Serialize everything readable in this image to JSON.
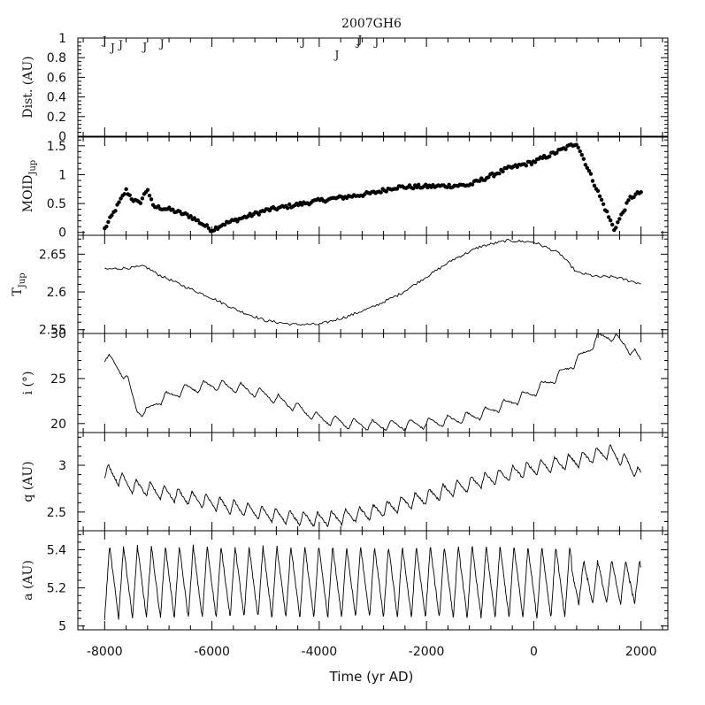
{
  "chart_data": {
    "title": "2007GH6",
    "xlabel": "Time (yr AD)",
    "xlim": [
      -8500,
      2500
    ],
    "xticks": [
      -8000,
      -6000,
      -4000,
      -2000,
      0,
      2000
    ],
    "xtick_labels": [
      "-8000",
      "-6000",
      "-4000",
      "-2000",
      "0",
      "2000"
    ],
    "panels": [
      {
        "id": "dist",
        "type": "scatter",
        "marker": "J",
        "ylabel": "Dist. (AU)",
        "ylim": [
          0,
          1
        ],
        "yticks": [
          0,
          0.2,
          0.4,
          0.6,
          0.8,
          1
        ],
        "ytick_labels": [
          "0",
          "0.2",
          "0.4",
          "0.6",
          "0.8",
          "1"
        ],
        "points": [
          {
            "x": -8000,
            "y": 0.98
          },
          {
            "x": -7850,
            "y": 0.91
          },
          {
            "x": -7700,
            "y": 0.94
          },
          {
            "x": -7250,
            "y": 0.92
          },
          {
            "x": -6930,
            "y": 0.95
          },
          {
            "x": -4300,
            "y": 0.97
          },
          {
            "x": -3670,
            "y": 0.84
          },
          {
            "x": -3270,
            "y": 0.97
          },
          {
            "x": -3240,
            "y": 0.99
          },
          {
            "x": -2930,
            "y": 0.97
          }
        ]
      },
      {
        "id": "moid",
        "type": "scatter",
        "marker": "dot",
        "ylabel": "MOID",
        "ylabel_sub": "Jup",
        "ylim": [
          -0.05,
          1.65
        ],
        "yticks": [
          0,
          0.5,
          1,
          1.5
        ],
        "ytick_labels": [
          "0",
          "0.5",
          "1",
          "1.5"
        ],
        "anchors": [
          [
            -8000,
            0.06
          ],
          [
            -7600,
            0.73
          ],
          [
            -7480,
            0.57
          ],
          [
            -7350,
            0.5
          ],
          [
            -7200,
            0.76
          ],
          [
            -7100,
            0.45
          ],
          [
            -6800,
            0.4
          ],
          [
            -6400,
            0.28
          ],
          [
            -6000,
            0.04
          ],
          [
            -5800,
            0.14
          ],
          [
            -5000,
            0.38
          ],
          [
            -4000,
            0.55
          ],
          [
            -3000,
            0.68
          ],
          [
            -2600,
            0.78
          ],
          [
            -1800,
            0.8
          ],
          [
            -1200,
            0.82
          ],
          [
            -500,
            1.1
          ],
          [
            0,
            1.22
          ],
          [
            500,
            1.42
          ],
          [
            800,
            1.55
          ],
          [
            1500,
            0.05
          ],
          [
            1800,
            0.6
          ],
          [
            2000,
            0.7
          ]
        ],
        "noise": 0.035,
        "count": 300
      },
      {
        "id": "tjup",
        "type": "line",
        "ylabel": "T",
        "ylabel_sub": "Jup",
        "ylim": [
          2.545,
          2.675
        ],
        "yticks": [
          2.55,
          2.6,
          2.65
        ],
        "ytick_labels": [
          "2.55",
          "2.6",
          "2.65"
        ],
        "anchors": [
          [
            -8000,
            2.63
          ],
          [
            -7500,
            2.632
          ],
          [
            -7250,
            2.634
          ],
          [
            -7000,
            2.623
          ],
          [
            -6500,
            2.607
          ],
          [
            -6000,
            2.592
          ],
          [
            -5500,
            2.575
          ],
          [
            -5000,
            2.562
          ],
          [
            -4500,
            2.557
          ],
          [
            -4000,
            2.557
          ],
          [
            -3500,
            2.567
          ],
          [
            -3000,
            2.58
          ],
          [
            -2500,
            2.597
          ],
          [
            -2000,
            2.62
          ],
          [
            -1500,
            2.643
          ],
          [
            -1000,
            2.66
          ],
          [
            -500,
            2.668
          ],
          [
            0,
            2.666
          ],
          [
            300,
            2.657
          ],
          [
            500,
            2.65
          ],
          [
            800,
            2.626
          ],
          [
            1200,
            2.62
          ],
          [
            1500,
            2.62
          ],
          [
            2000,
            2.611
          ]
        ],
        "noise": 0.0018,
        "count": 340
      },
      {
        "id": "incl",
        "type": "line",
        "ylabel": "i (°)",
        "ylim": [
          19,
          30
        ],
        "yticks": [
          20,
          25,
          30
        ],
        "ytick_labels": [
          "20",
          "25",
          "30"
        ],
        "anchors": [
          [
            -8000,
            27.5
          ],
          [
            -7800,
            26.5
          ],
          [
            -7600,
            25.2
          ],
          [
            -7400,
            21.5
          ],
          [
            -7200,
            21.2
          ],
          [
            -7000,
            22.6
          ],
          [
            -6500,
            23.8
          ],
          [
            -6000,
            24.3
          ],
          [
            -5500,
            24.0
          ],
          [
            -5000,
            23.2
          ],
          [
            -4500,
            22.0
          ],
          [
            -4000,
            20.6
          ],
          [
            -3500,
            20.0
          ],
          [
            -3000,
            19.8
          ],
          [
            -2500,
            19.8
          ],
          [
            -2000,
            20.0
          ],
          [
            -1500,
            20.4
          ],
          [
            -1000,
            21.0
          ],
          [
            -500,
            22.2
          ],
          [
            0,
            23.5
          ],
          [
            500,
            25.5
          ],
          [
            900,
            27.5
          ],
          [
            1200,
            29.5
          ],
          [
            1400,
            29.8
          ],
          [
            1700,
            28.8
          ],
          [
            2000,
            27.0
          ]
        ],
        "osc_amp": 1.2,
        "osc_period": 350,
        "count": 600
      },
      {
        "id": "q",
        "type": "line",
        "ylabel": "q (AU)",
        "ylim": [
          2.3,
          3.35
        ],
        "yticks": [
          2.5,
          3
        ],
        "ytick_labels": [
          "2.5",
          "3"
        ],
        "anchors": [
          [
            -8000,
            2.95
          ],
          [
            -7500,
            2.78
          ],
          [
            -7000,
            2.72
          ],
          [
            -6500,
            2.66
          ],
          [
            -6000,
            2.6
          ],
          [
            -5500,
            2.54
          ],
          [
            -5000,
            2.48
          ],
          [
            -4500,
            2.44
          ],
          [
            -4000,
            2.42
          ],
          [
            -3500,
            2.45
          ],
          [
            -3000,
            2.5
          ],
          [
            -2500,
            2.58
          ],
          [
            -2000,
            2.66
          ],
          [
            -1500,
            2.75
          ],
          [
            -1000,
            2.83
          ],
          [
            -500,
            2.9
          ],
          [
            0,
            2.97
          ],
          [
            500,
            3.02
          ],
          [
            1000,
            3.08
          ],
          [
            1400,
            3.15
          ],
          [
            1700,
            3.05
          ],
          [
            2000,
            2.88
          ]
        ],
        "osc_amp": 0.16,
        "osc_period": 260,
        "count": 800
      },
      {
        "id": "a",
        "type": "line",
        "ylabel": "a (AU)",
        "ylim": [
          4.98,
          5.5
        ],
        "yticks": [
          5,
          5.2,
          5.4
        ],
        "ytick_labels": [
          "5",
          "5.2",
          "5.4"
        ],
        "base": 5.23,
        "osc_amp": 0.19,
        "osc_period": 260,
        "count": 1000
      }
    ]
  }
}
